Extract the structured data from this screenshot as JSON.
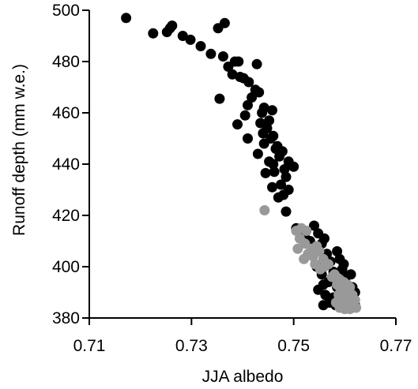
{
  "chart_data": {
    "type": "scatter",
    "title": "",
    "xlabel": "JJA albedo",
    "ylabel": "Runoff depth (mm w.e.)",
    "xlim": [
      0.71,
      0.77
    ],
    "ylim": [
      380,
      500
    ],
    "xticks": [
      "0.71",
      "0.73",
      "0.75",
      "0.77"
    ],
    "yticks": [
      "380",
      "400",
      "420",
      "440",
      "460",
      "480",
      "500"
    ],
    "grid": false,
    "colors": {
      "black_series": "#000000",
      "gray_series": "#999999"
    },
    "series": [
      {
        "color": "#000000",
        "points": [
          [
            0.7172,
            497
          ],
          [
            0.7225,
            491
          ],
          [
            0.7252,
            491.5
          ],
          [
            0.7258,
            493
          ],
          [
            0.7262,
            494
          ],
          [
            0.7283,
            490
          ],
          [
            0.7298,
            488.5
          ],
          [
            0.7318,
            486
          ],
          [
            0.7338,
            483
          ],
          [
            0.7352,
            493
          ],
          [
            0.7365,
            495
          ],
          [
            0.7362,
            482
          ],
          [
            0.7372,
            478
          ],
          [
            0.738,
            475
          ],
          [
            0.7385,
            480
          ],
          [
            0.7392,
            480
          ],
          [
            0.7395,
            474
          ],
          [
            0.7402,
            473.5
          ],
          [
            0.7412,
            472
          ],
          [
            0.7425,
            469
          ],
          [
            0.7428,
            479
          ],
          [
            0.7418,
            466
          ],
          [
            0.7432,
            468
          ],
          [
            0.7355,
            465.5
          ],
          [
            0.741,
            463
          ],
          [
            0.7438,
            460
          ],
          [
            0.7442,
            462
          ],
          [
            0.7452,
            457
          ],
          [
            0.7458,
            461
          ],
          [
            0.7405,
            459
          ],
          [
            0.739,
            455.5
          ],
          [
            0.7435,
            456
          ],
          [
            0.744,
            452
          ],
          [
            0.7448,
            454
          ],
          [
            0.7455,
            450
          ],
          [
            0.746,
            451
          ],
          [
            0.741,
            450
          ],
          [
            0.7442,
            448
          ],
          [
            0.7465,
            446
          ],
          [
            0.7472,
            443
          ],
          [
            0.7468,
            447
          ],
          [
            0.7478,
            445
          ],
          [
            0.743,
            444
          ],
          [
            0.7452,
            441
          ],
          [
            0.746,
            440
          ],
          [
            0.7482,
            438
          ],
          [
            0.749,
            441
          ],
          [
            0.75,
            439
          ],
          [
            0.7462,
            437
          ],
          [
            0.7445,
            436.5
          ],
          [
            0.7485,
            435
          ],
          [
            0.7475,
            432
          ],
          [
            0.7458,
            431
          ],
          [
            0.747,
            427
          ],
          [
            0.748,
            428
          ],
          [
            0.749,
            430
          ],
          [
            0.7485,
            421.5
          ],
          [
            0.7505,
            415
          ],
          [
            0.7522,
            413
          ],
          [
            0.754,
            416
          ],
          [
            0.7548,
            413
          ],
          [
            0.7532,
            410
          ],
          [
            0.7555,
            409
          ],
          [
            0.756,
            411
          ],
          [
            0.7565,
            405
          ],
          [
            0.7572,
            402
          ],
          [
            0.7585,
            406
          ],
          [
            0.759,
            403
          ],
          [
            0.7598,
            401
          ],
          [
            0.7545,
            400
          ],
          [
            0.7555,
            397
          ],
          [
            0.7578,
            398
          ],
          [
            0.7595,
            399
          ],
          [
            0.7602,
            396
          ],
          [
            0.7612,
            397
          ],
          [
            0.7558,
            393
          ],
          [
            0.7568,
            394
          ],
          [
            0.7585,
            392
          ],
          [
            0.7605,
            393
          ],
          [
            0.7615,
            392
          ],
          [
            0.762,
            390
          ],
          [
            0.759,
            389
          ],
          [
            0.7548,
            391
          ],
          [
            0.7562,
            389
          ],
          [
            0.7578,
            388
          ],
          [
            0.7598,
            387
          ],
          [
            0.7612,
            386
          ],
          [
            0.762,
            385
          ],
          [
            0.757,
            386
          ],
          [
            0.7558,
            385
          ],
          [
            0.7582,
            385
          ]
        ]
      },
      {
        "color": "#999999",
        "points": [
          [
            0.7443,
            422
          ],
          [
            0.7505,
            414
          ],
          [
            0.7515,
            415
          ],
          [
            0.7525,
            414
          ],
          [
            0.7512,
            411
          ],
          [
            0.7522,
            409
          ],
          [
            0.7508,
            407
          ],
          [
            0.7535,
            407
          ],
          [
            0.7545,
            408
          ],
          [
            0.7528,
            405
          ],
          [
            0.7538,
            404
          ],
          [
            0.752,
            403
          ],
          [
            0.755,
            406
          ],
          [
            0.7558,
            403
          ],
          [
            0.7542,
            401
          ],
          [
            0.756,
            400
          ],
          [
            0.7568,
            401
          ],
          [
            0.7552,
            399
          ],
          [
            0.758,
            397
          ],
          [
            0.7575,
            396
          ],
          [
            0.759,
            395
          ],
          [
            0.7585,
            393
          ],
          [
            0.7598,
            394
          ],
          [
            0.7592,
            391
          ],
          [
            0.7605,
            393
          ],
          [
            0.7588,
            389
          ],
          [
            0.76,
            390
          ],
          [
            0.761,
            392
          ],
          [
            0.7595,
            387
          ],
          [
            0.7608,
            388
          ],
          [
            0.7615,
            389
          ],
          [
            0.7602,
            386
          ],
          [
            0.7612,
            386
          ],
          [
            0.762,
            387
          ],
          [
            0.7583,
            386
          ],
          [
            0.7595,
            385
          ],
          [
            0.7605,
            384.5
          ],
          [
            0.7615,
            384
          ],
          [
            0.7622,
            384
          ],
          [
            0.759,
            384
          ],
          [
            0.76,
            383.5
          ],
          [
            0.761,
            383.5
          ]
        ]
      }
    ]
  }
}
